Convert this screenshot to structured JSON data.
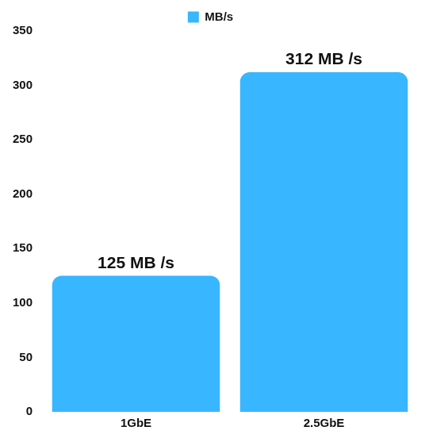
{
  "chart_data": {
    "type": "bar",
    "categories": [
      "1GbE",
      "2.5GbE"
    ],
    "series": [
      {
        "name": "MB/s",
        "color": "#38b6ff",
        "values": [
          125,
          312
        ],
        "value_labels": [
          "125 MB /s",
          "312 MB /s"
        ]
      }
    ],
    "ylim": [
      0,
      350
    ],
    "yticks": [
      0,
      50,
      100,
      150,
      200,
      250,
      300,
      350
    ],
    "grid": false,
    "legend": "top",
    "data_labels": true
  }
}
